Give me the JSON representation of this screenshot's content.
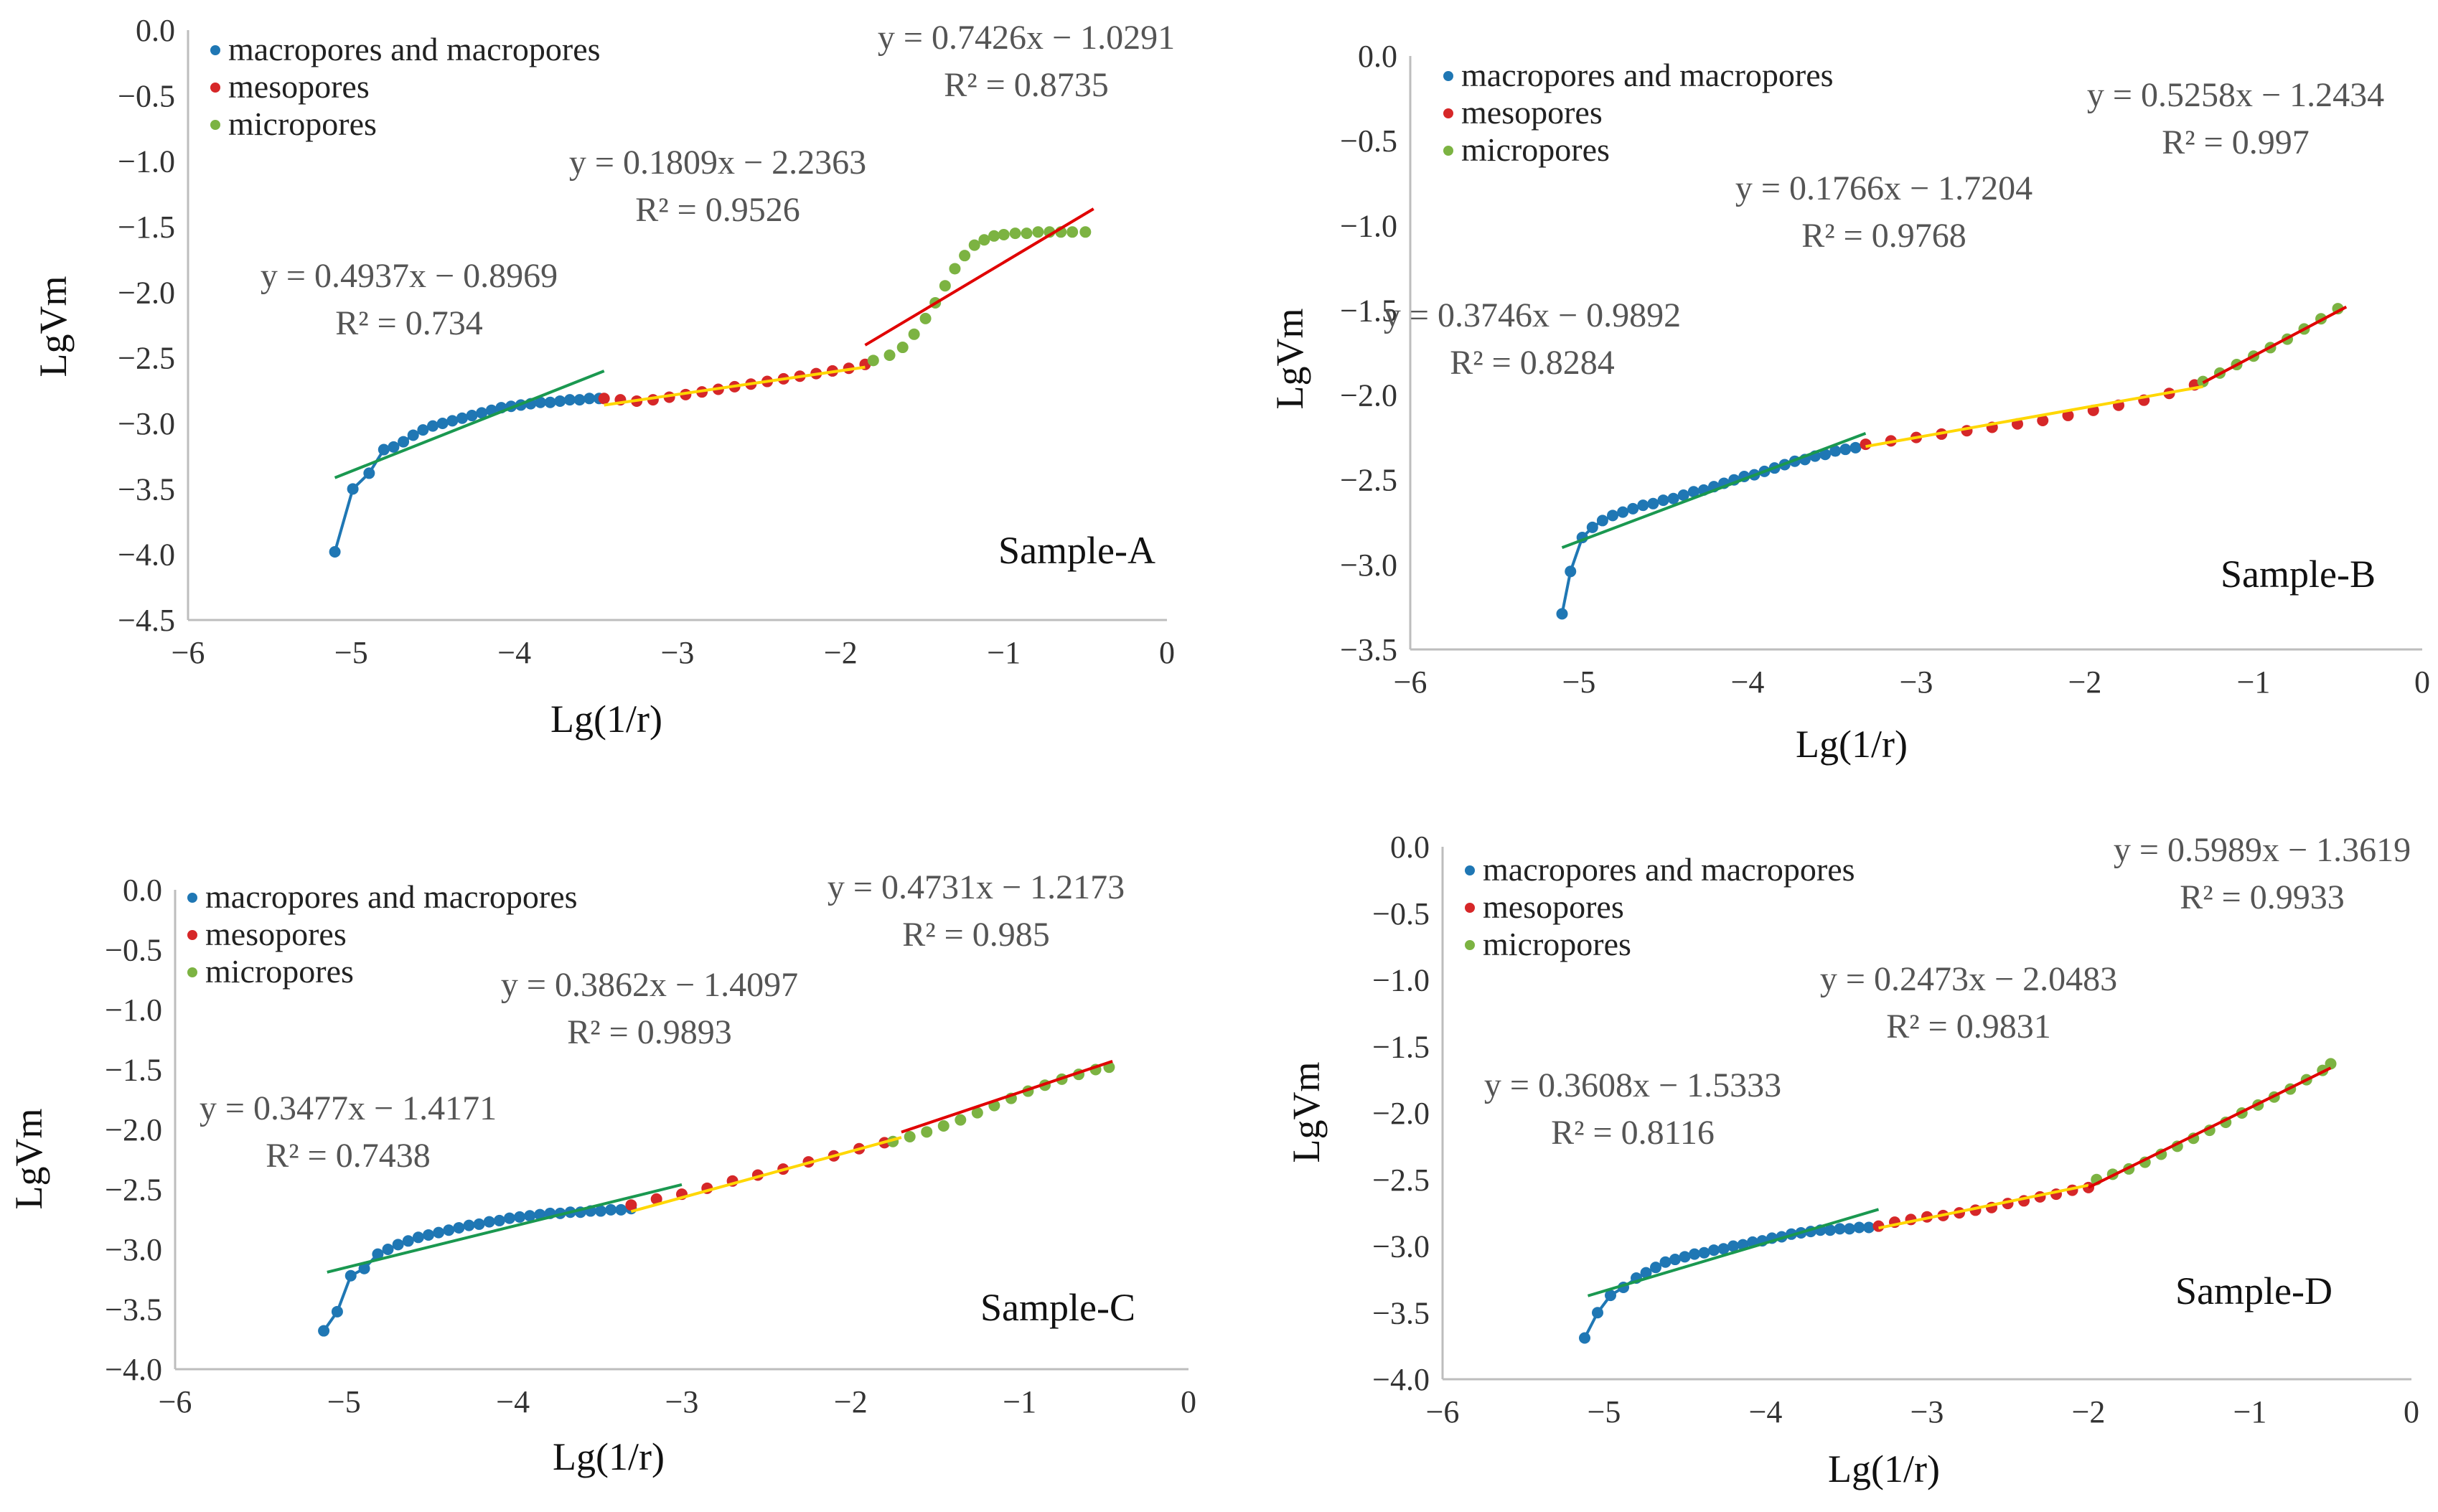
{
  "colors": {
    "macro": "#1f77b4",
    "meso": "#d62728",
    "micro": "#7cb342",
    "fit_macro": "#1a9850",
    "fit_meso": "#ffd700",
    "fit_micro": "#e00000",
    "axis": "#bdbdbd"
  },
  "chart_data": [
    {
      "type": "scatter",
      "label": "Sample-A",
      "xlabel": "Lg(1/r)",
      "ylabel": "LgVm",
      "xlim": [
        -6,
        0
      ],
      "ylim": [
        -4.5,
        0
      ],
      "xticks": [
        -6,
        -5,
        -4,
        -3,
        -2,
        -1,
        0
      ],
      "yticks": [
        0,
        -0.5,
        -1,
        -1.5,
        -2,
        -2.5,
        -3,
        -3.5,
        -4,
        -4.5
      ],
      "xtick_labels": [
        "−6",
        "−5",
        "−4",
        "−3",
        "−2",
        "−1",
        "0"
      ],
      "ytick_labels": [
        "0.0",
        "−0.5",
        "−1.0",
        "−1.5",
        "−2.0",
        "−2.5",
        "−3.0",
        "−3.5",
        "−4.0",
        "−4.5"
      ],
      "legend": [
        "macropores and macropores",
        "mesopores",
        "micropores"
      ],
      "equations": [
        {
          "eq": "y = 0.4937x − 0.8969",
          "r2": "R² = 0.734",
          "slope": 0.4937,
          "intercept": -0.8969,
          "x_range": [
            -5.1,
            -3.45
          ]
        },
        {
          "eq": "y = 0.1809x − 2.2363",
          "r2": "R² = 0.9526",
          "slope": 0.1809,
          "intercept": -2.2363,
          "x_range": [
            -3.45,
            -1.85
          ]
        },
        {
          "eq": "y = 0.7426x − 1.0291",
          "r2": "R² = 0.8735",
          "slope": 0.7426,
          "intercept": -1.0291,
          "x_range": [
            -1.85,
            -0.45
          ]
        }
      ],
      "series": [
        {
          "name": "macropores and macropores",
          "x": [
            -5.1,
            -4.99,
            -4.89,
            -4.8,
            -4.74,
            -4.68,
            -4.62,
            -4.56,
            -4.5,
            -4.44,
            -4.38,
            -4.32,
            -4.26,
            -4.2,
            -4.14,
            -4.08,
            -4.02,
            -3.96,
            -3.9,
            -3.84,
            -3.78,
            -3.72,
            -3.66,
            -3.6,
            -3.54,
            -3.48
          ],
          "y": [
            -3.98,
            -3.5,
            -3.38,
            -3.2,
            -3.18,
            -3.14,
            -3.09,
            -3.05,
            -3.02,
            -3.0,
            -2.98,
            -2.96,
            -2.94,
            -2.92,
            -2.9,
            -2.88,
            -2.87,
            -2.86,
            -2.85,
            -2.84,
            -2.84,
            -2.83,
            -2.82,
            -2.82,
            -2.81,
            -2.81
          ]
        },
        {
          "name": "mesopores",
          "x": [
            -3.45,
            -3.35,
            -3.25,
            -3.15,
            -3.05,
            -2.95,
            -2.85,
            -2.75,
            -2.65,
            -2.55,
            -2.45,
            -2.35,
            -2.25,
            -2.15,
            -2.05,
            -1.95,
            -1.85
          ],
          "y": [
            -2.81,
            -2.82,
            -2.83,
            -2.82,
            -2.8,
            -2.78,
            -2.76,
            -2.74,
            -2.72,
            -2.7,
            -2.68,
            -2.66,
            -2.64,
            -2.62,
            -2.6,
            -2.58,
            -2.55
          ]
        },
        {
          "name": "micropores",
          "x": [
            -1.8,
            -1.7,
            -1.62,
            -1.55,
            -1.48,
            -1.42,
            -1.36,
            -1.3,
            -1.24,
            -1.18,
            -1.12,
            -1.06,
            -1.0,
            -0.93,
            -0.86,
            -0.79,
            -0.72,
            -0.65,
            -0.58,
            -0.5
          ],
          "y": [
            -2.52,
            -2.48,
            -2.42,
            -2.32,
            -2.2,
            -2.08,
            -1.95,
            -1.82,
            -1.72,
            -1.64,
            -1.6,
            -1.57,
            -1.56,
            -1.55,
            -1.55,
            -1.54,
            -1.54,
            -1.54,
            -1.54,
            -1.54
          ]
        }
      ]
    },
    {
      "type": "scatter",
      "label": "Sample-B",
      "xlabel": "Lg(1/r)",
      "ylabel": "LgVm",
      "xlim": [
        -6,
        0
      ],
      "ylim": [
        -3.5,
        0
      ],
      "xticks": [
        -6,
        -5,
        -4,
        -3,
        -2,
        -1,
        0
      ],
      "yticks": [
        0,
        -0.5,
        -1,
        -1.5,
        -2,
        -2.5,
        -3,
        -3.5
      ],
      "xtick_labels": [
        "−6",
        "−5",
        "−4",
        "−3",
        "−2",
        "−1",
        "0"
      ],
      "ytick_labels": [
        "0.0",
        "−0.5",
        "−1.0",
        "−1.5",
        "−2.0",
        "−2.5",
        "−3.0",
        "−3.5"
      ],
      "legend": [
        "macropores and macropores",
        "mesopores",
        "micropores"
      ],
      "equations": [
        {
          "eq": "y = 0.3746x − 0.9892",
          "r2": "R² = 0.8284",
          "slope": 0.3746,
          "intercept": -0.9892,
          "x_range": [
            -5.1,
            -3.3
          ]
        },
        {
          "eq": "y = 0.1766x − 1.7204",
          "r2": "R² = 0.9768",
          "slope": 0.1766,
          "intercept": -1.7204,
          "x_range": [
            -3.3,
            -1.3
          ]
        },
        {
          "eq": "y = 0.5258x − 1.2434",
          "r2": "R² = 0.997",
          "slope": 0.5258,
          "intercept": -1.2434,
          "x_range": [
            -1.3,
            -0.45
          ]
        }
      ],
      "series": [
        {
          "name": "macropores and macropores",
          "x": [
            -5.1,
            -5.05,
            -4.98,
            -4.92,
            -4.86,
            -4.8,
            -4.74,
            -4.68,
            -4.62,
            -4.56,
            -4.5,
            -4.44,
            -4.38,
            -4.32,
            -4.26,
            -4.2,
            -4.14,
            -4.08,
            -4.02,
            -3.96,
            -3.9,
            -3.84,
            -3.78,
            -3.72,
            -3.66,
            -3.6,
            -3.54,
            -3.48,
            -3.42,
            -3.36
          ],
          "y": [
            -3.29,
            -3.04,
            -2.84,
            -2.78,
            -2.74,
            -2.71,
            -2.69,
            -2.67,
            -2.65,
            -2.64,
            -2.62,
            -2.61,
            -2.59,
            -2.57,
            -2.56,
            -2.54,
            -2.52,
            -2.5,
            -2.48,
            -2.47,
            -2.45,
            -2.43,
            -2.41,
            -2.39,
            -2.38,
            -2.36,
            -2.35,
            -2.33,
            -2.32,
            -2.31
          ]
        },
        {
          "name": "mesopores",
          "x": [
            -3.3,
            -3.15,
            -3.0,
            -2.85,
            -2.7,
            -2.55,
            -2.4,
            -2.25,
            -2.1,
            -1.95,
            -1.8,
            -1.65,
            -1.5,
            -1.35
          ],
          "y": [
            -2.29,
            -2.27,
            -2.25,
            -2.23,
            -2.21,
            -2.19,
            -2.17,
            -2.15,
            -2.12,
            -2.09,
            -2.06,
            -2.03,
            -1.99,
            -1.94
          ]
        },
        {
          "name": "micropores",
          "x": [
            -1.3,
            -1.2,
            -1.1,
            -1.0,
            -0.9,
            -0.8,
            -0.7,
            -0.6,
            -0.5
          ],
          "y": [
            -1.92,
            -1.87,
            -1.82,
            -1.77,
            -1.72,
            -1.67,
            -1.61,
            -1.55,
            -1.49
          ]
        }
      ]
    },
    {
      "type": "scatter",
      "label": "Sample-C",
      "xlabel": "Lg(1/r)",
      "ylabel": "LgVm",
      "xlim": [
        -6,
        0
      ],
      "ylim": [
        -4.0,
        0
      ],
      "xticks": [
        -6,
        -5,
        -4,
        -3,
        -2,
        -1,
        0
      ],
      "yticks": [
        0,
        -0.5,
        -1,
        -1.5,
        -2,
        -2.5,
        -3,
        -3.5,
        -4
      ],
      "xtick_labels": [
        "−6",
        "−5",
        "−4",
        "−3",
        "−2",
        "−1",
        "0"
      ],
      "ytick_labels": [
        "0.0",
        "−0.5",
        "−1.0",
        "−1.5",
        "−2.0",
        "−2.5",
        "−3.0",
        "−3.5",
        "−4.0"
      ],
      "legend": [
        "macropores and macropores",
        "mesopores",
        "micropores"
      ],
      "equations": [
        {
          "eq": "y = 0.3477x − 1.4171",
          "r2": "R² = 0.7438",
          "slope": 0.3477,
          "intercept": -1.4171,
          "x_range": [
            -5.1,
            -3.0
          ]
        },
        {
          "eq": "y = 0.3862x − 1.4097",
          "r2": "R² = 0.9893",
          "slope": 0.3862,
          "intercept": -1.4097,
          "x_range": [
            -3.3,
            -1.7
          ]
        },
        {
          "eq": "y = 0.4731x − 1.2173",
          "r2": "R² = 0.985",
          "slope": 0.4731,
          "intercept": -1.2173,
          "x_range": [
            -1.7,
            -0.45
          ]
        }
      ],
      "series": [
        {
          "name": "macropores and macropores",
          "x": [
            -5.12,
            -5.04,
            -4.96,
            -4.88,
            -4.8,
            -4.74,
            -4.68,
            -4.62,
            -4.56,
            -4.5,
            -4.44,
            -4.38,
            -4.32,
            -4.26,
            -4.2,
            -4.14,
            -4.08,
            -4.02,
            -3.96,
            -3.9,
            -3.84,
            -3.78,
            -3.72,
            -3.66,
            -3.6,
            -3.54,
            -3.48,
            -3.42,
            -3.36,
            -3.3
          ],
          "y": [
            -3.68,
            -3.52,
            -3.22,
            -3.16,
            -3.04,
            -3.0,
            -2.96,
            -2.93,
            -2.9,
            -2.88,
            -2.86,
            -2.84,
            -2.82,
            -2.8,
            -2.79,
            -2.77,
            -2.76,
            -2.74,
            -2.73,
            -2.72,
            -2.71,
            -2.7,
            -2.7,
            -2.69,
            -2.69,
            -2.68,
            -2.68,
            -2.67,
            -2.67,
            -2.66
          ]
        },
        {
          "name": "mesopores",
          "x": [
            -3.3,
            -3.15,
            -3.0,
            -2.85,
            -2.7,
            -2.55,
            -2.4,
            -2.25,
            -2.1,
            -1.95,
            -1.8
          ],
          "y": [
            -2.63,
            -2.58,
            -2.54,
            -2.49,
            -2.43,
            -2.38,
            -2.33,
            -2.27,
            -2.22,
            -2.16,
            -2.11
          ]
        },
        {
          "name": "micropores",
          "x": [
            -1.75,
            -1.65,
            -1.55,
            -1.45,
            -1.35,
            -1.25,
            -1.15,
            -1.05,
            -0.95,
            -0.85,
            -0.75,
            -0.65,
            -0.55,
            -0.47
          ],
          "y": [
            -2.1,
            -2.06,
            -2.02,
            -1.97,
            -1.92,
            -1.86,
            -1.8,
            -1.74,
            -1.68,
            -1.63,
            -1.58,
            -1.54,
            -1.5,
            -1.48
          ]
        }
      ]
    },
    {
      "type": "scatter",
      "label": "Sample-D",
      "xlabel": "Lg(1/r)",
      "ylabel": "LgVm",
      "xlim": [
        -6,
        0
      ],
      "ylim": [
        -4.0,
        0
      ],
      "xticks": [
        -6,
        -5,
        -4,
        -3,
        -2,
        -1,
        0
      ],
      "yticks": [
        0,
        -0.5,
        -1,
        -1.5,
        -2,
        -2.5,
        -3,
        -3.5,
        -4
      ],
      "xtick_labels": [
        "−6",
        "−5",
        "−4",
        "−3",
        "−2",
        "−1",
        "0"
      ],
      "ytick_labels": [
        "0.0",
        "−0.5",
        "−1.0",
        "−1.5",
        "−2.0",
        "−2.5",
        "−3.0",
        "−3.5",
        "−4.0"
      ],
      "legend": [
        "macropores and macropores",
        "mesopores",
        "micropores"
      ],
      "equations": [
        {
          "eq": "y = 0.3608x − 1.5333",
          "r2": "R² = 0.8116",
          "slope": 0.3608,
          "intercept": -1.5333,
          "x_range": [
            -5.1,
            -3.3
          ]
        },
        {
          "eq": "y = 0.2473x − 2.0483",
          "r2": "R² = 0.9831",
          "slope": 0.2473,
          "intercept": -2.0483,
          "x_range": [
            -3.3,
            -2.0
          ]
        },
        {
          "eq": "y = 0.5989x − 1.3619",
          "r2": "R² = 0.9933",
          "slope": 0.5989,
          "intercept": -1.3619,
          "x_range": [
            -2.0,
            -0.5
          ]
        }
      ],
      "series": [
        {
          "name": "macropores and macropores",
          "x": [
            -5.12,
            -5.04,
            -4.96,
            -4.88,
            -4.8,
            -4.74,
            -4.68,
            -4.62,
            -4.56,
            -4.5,
            -4.44,
            -4.38,
            -4.32,
            -4.26,
            -4.2,
            -4.14,
            -4.08,
            -4.02,
            -3.96,
            -3.9,
            -3.84,
            -3.78,
            -3.72,
            -3.66,
            -3.6,
            -3.54,
            -3.48,
            -3.42,
            -3.36
          ],
          "y": [
            -3.69,
            -3.5,
            -3.37,
            -3.31,
            -3.24,
            -3.2,
            -3.16,
            -3.12,
            -3.1,
            -3.08,
            -3.06,
            -3.05,
            -3.03,
            -3.02,
            -3.0,
            -2.99,
            -2.97,
            -2.96,
            -2.94,
            -2.93,
            -2.91,
            -2.9,
            -2.89,
            -2.88,
            -2.88,
            -2.87,
            -2.87,
            -2.86,
            -2.86
          ]
        },
        {
          "name": "mesopores",
          "x": [
            -3.3,
            -3.2,
            -3.1,
            -3.0,
            -2.9,
            -2.8,
            -2.7,
            -2.6,
            -2.5,
            -2.4,
            -2.3,
            -2.2,
            -2.1,
            -2.0
          ],
          "y": [
            -2.85,
            -2.82,
            -2.8,
            -2.78,
            -2.77,
            -2.75,
            -2.73,
            -2.71,
            -2.68,
            -2.66,
            -2.63,
            -2.61,
            -2.58,
            -2.56
          ]
        },
        {
          "name": "micropores",
          "x": [
            -1.95,
            -1.85,
            -1.75,
            -1.65,
            -1.55,
            -1.45,
            -1.35,
            -1.25,
            -1.15,
            -1.05,
            -0.95,
            -0.85,
            -0.75,
            -0.65,
            -0.55,
            -0.5
          ],
          "y": [
            -2.5,
            -2.46,
            -2.42,
            -2.37,
            -2.31,
            -2.25,
            -2.19,
            -2.13,
            -2.07,
            -2.0,
            -1.94,
            -1.88,
            -1.82,
            -1.75,
            -1.68,
            -1.63
          ]
        }
      ]
    }
  ]
}
